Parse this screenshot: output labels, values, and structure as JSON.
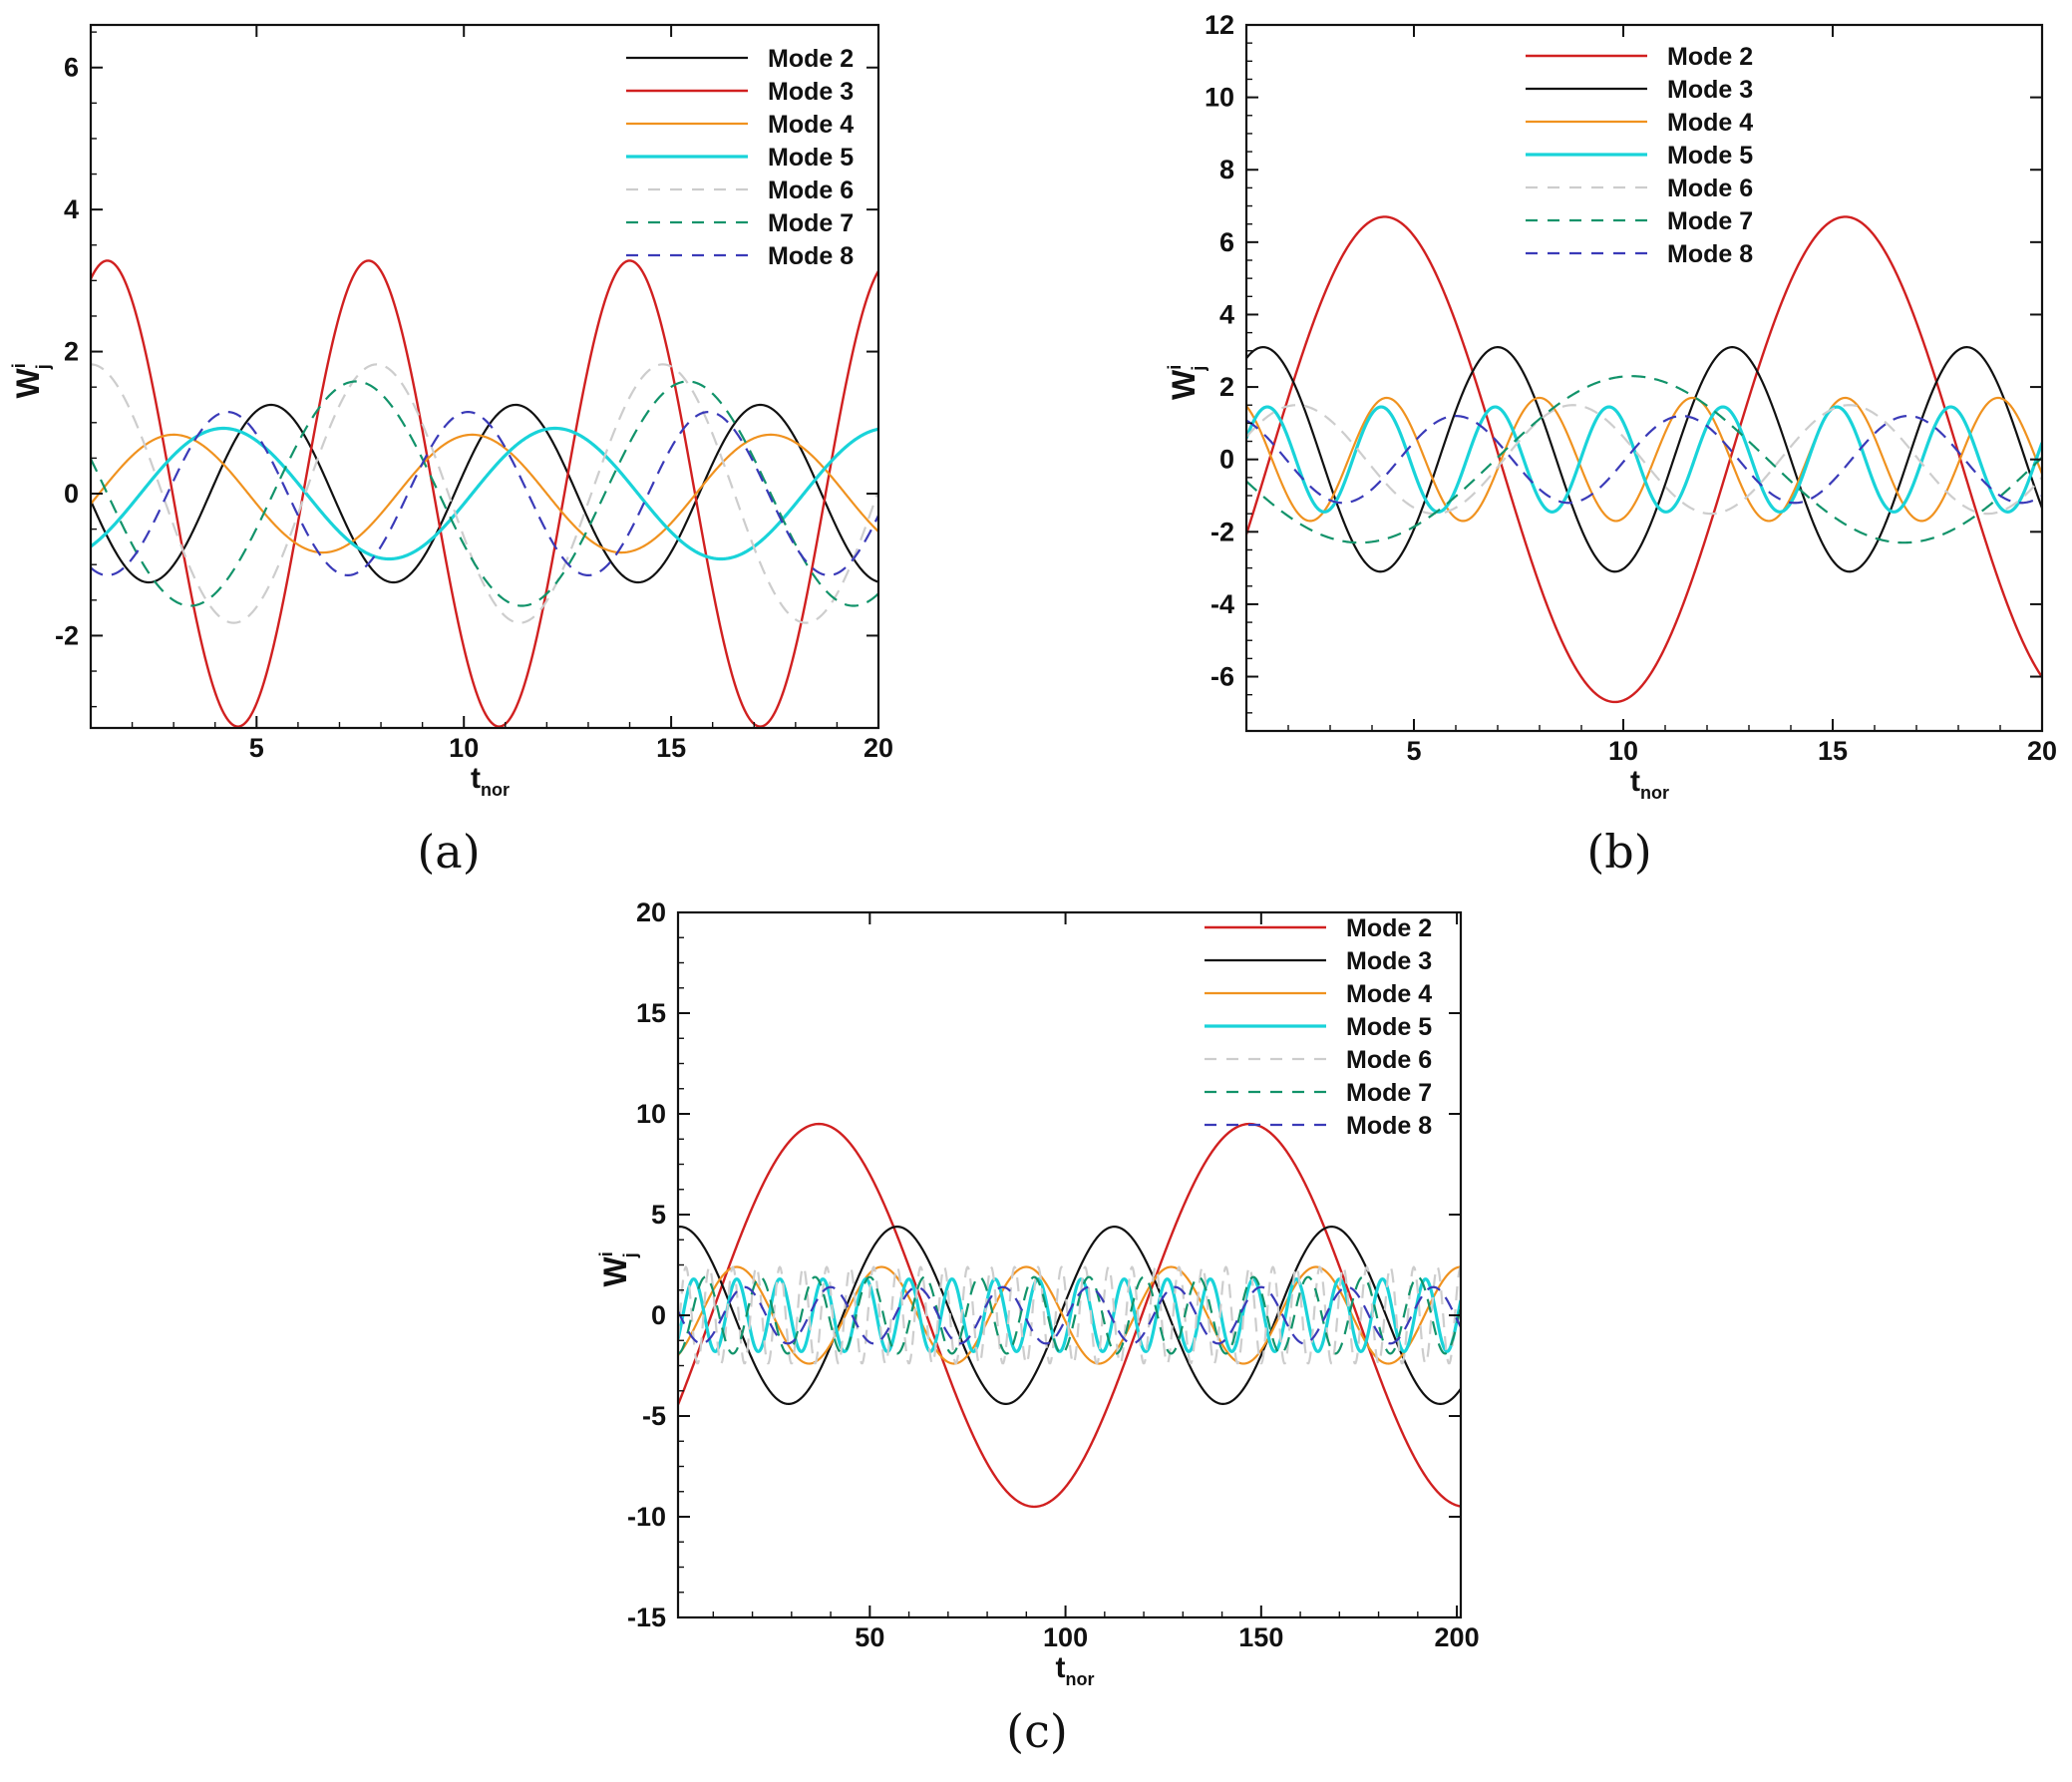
{
  "colors": {
    "red": "#d12020",
    "black": "#111111",
    "orange": "#f0921f",
    "cyan": "#19d3d9",
    "lightgray": "#cdcdcd",
    "green": "#12936a",
    "blue": "#3a3ab8"
  },
  "chart_data": [
    {
      "id": "a",
      "type": "line",
      "panel_label": "(a)",
      "xlabel": "t_nor",
      "ylabel": "W_j^i",
      "xlim": [
        1,
        20
      ],
      "ylim": [
        -3.3,
        6.6
      ],
      "xticks": [
        5,
        10,
        15,
        20
      ],
      "yticks": [
        -2,
        0,
        2,
        4,
        6
      ],
      "legend_position": "top-right",
      "series": [
        {
          "name": "Mode 2",
          "color": "black",
          "dash": "solid",
          "width": 2.2,
          "amplitude": 1.25,
          "period": 5.9,
          "phase_at": 5.35
        },
        {
          "name": "Mode 3",
          "color": "red",
          "dash": "solid",
          "width": 2.4,
          "amplitude": 3.28,
          "period": 6.3,
          "phase_at": 1.4
        },
        {
          "name": "Mode 4",
          "color": "orange",
          "dash": "solid",
          "width": 2.2,
          "amplitude": 0.83,
          "period": 7.2,
          "phase_at": 3.0
        },
        {
          "name": "Mode 5",
          "color": "cyan",
          "dash": "solid",
          "width": 3.2,
          "amplitude": 0.92,
          "period": 8.0,
          "phase_at": 4.2
        },
        {
          "name": "Mode 6",
          "color": "lightgray",
          "dash": "dash",
          "width": 2.2,
          "amplitude": 1.82,
          "period": 6.9,
          "phase_at": 1.0
        },
        {
          "name": "Mode 7",
          "color": "green",
          "dash": "dash",
          "width": 2.2,
          "amplitude": 1.58,
          "period": 8.0,
          "phase_at": 7.4
        },
        {
          "name": "Mode 8",
          "color": "blue",
          "dash": "dash",
          "width": 2.2,
          "amplitude": 1.15,
          "period": 5.8,
          "phase_at": 4.3
        }
      ]
    },
    {
      "id": "b",
      "type": "line",
      "panel_label": "(b)",
      "xlabel": "t_nor",
      "ylabel": "W_j^i",
      "xlim": [
        1,
        20
      ],
      "ylim": [
        -7.5,
        12
      ],
      "xticks": [
        5,
        10,
        15,
        20
      ],
      "yticks": [
        -6,
        -4,
        -2,
        0,
        2,
        4,
        6,
        8,
        10,
        12
      ],
      "legend_position": "top-right",
      "series": [
        {
          "name": "Mode 2",
          "color": "red",
          "dash": "solid",
          "width": 2.4,
          "amplitude": 6.7,
          "period": 11.0,
          "phase_at": 4.3
        },
        {
          "name": "Mode 3",
          "color": "black",
          "dash": "solid",
          "width": 2.2,
          "amplitude": 3.1,
          "period": 5.6,
          "phase_at": 1.4
        },
        {
          "name": "Mode 4",
          "color": "orange",
          "dash": "solid",
          "width": 2.2,
          "amplitude": 1.7,
          "period": 3.65,
          "phase_at": 4.35
        },
        {
          "name": "Mode 5",
          "color": "cyan",
          "dash": "solid",
          "width": 3.2,
          "amplitude": 1.45,
          "period": 2.72,
          "phase_at": 1.5
        },
        {
          "name": "Mode 6",
          "color": "lightgray",
          "dash": "dash",
          "width": 2.2,
          "amplitude": 1.5,
          "period": 6.6,
          "phase_at": 2.2
        },
        {
          "name": "Mode 7",
          "color": "green",
          "dash": "dash",
          "width": 2.2,
          "amplitude": 2.3,
          "period": 13.0,
          "phase_at": 10.2
        },
        {
          "name": "Mode 8",
          "color": "blue",
          "dash": "dash",
          "width": 2.2,
          "amplitude": 1.2,
          "period": 5.4,
          "phase_at": 6.0
        }
      ]
    },
    {
      "id": "c",
      "type": "line",
      "panel_label": "(c)",
      "xlabel": "t_nor",
      "ylabel": "W_j^i",
      "xlim": [
        1,
        201
      ],
      "ylim": [
        -15,
        20
      ],
      "xticks": [
        50,
        100,
        150,
        200
      ],
      "yticks": [
        -15,
        -10,
        -5,
        0,
        5,
        10,
        15,
        20
      ],
      "legend_position": "top-right",
      "series": [
        {
          "name": "Mode 2",
          "color": "red",
          "dash": "solid",
          "width": 2.4,
          "amplitude": 9.5,
          "period": 110.0,
          "phase_at": 37.0
        },
        {
          "name": "Mode 3",
          "color": "black",
          "dash": "solid",
          "width": 2.2,
          "amplitude": 4.4,
          "period": 55.5,
          "phase_at": 57.0
        },
        {
          "name": "Mode 4",
          "color": "orange",
          "dash": "solid",
          "width": 2.2,
          "amplitude": 2.4,
          "period": 37.0,
          "phase_at": 16.0
        },
        {
          "name": "Mode 5",
          "color": "cyan",
          "dash": "solid",
          "width": 3.2,
          "amplitude": 1.8,
          "period": 11.0,
          "phase_at": 5.0
        },
        {
          "name": "Mode 6",
          "color": "lightgray",
          "dash": "dash",
          "width": 2.2,
          "amplitude": 2.4,
          "period": 6.0,
          "phase_at": 3.0
        },
        {
          "name": "Mode 7",
          "color": "green",
          "dash": "dash",
          "width": 2.2,
          "amplitude": 1.9,
          "period": 14.0,
          "phase_at": 8.0
        },
        {
          "name": "Mode 8",
          "color": "blue",
          "dash": "dash",
          "width": 2.2,
          "amplitude": 1.4,
          "period": 22.0,
          "phase_at": 40.0
        }
      ]
    }
  ]
}
